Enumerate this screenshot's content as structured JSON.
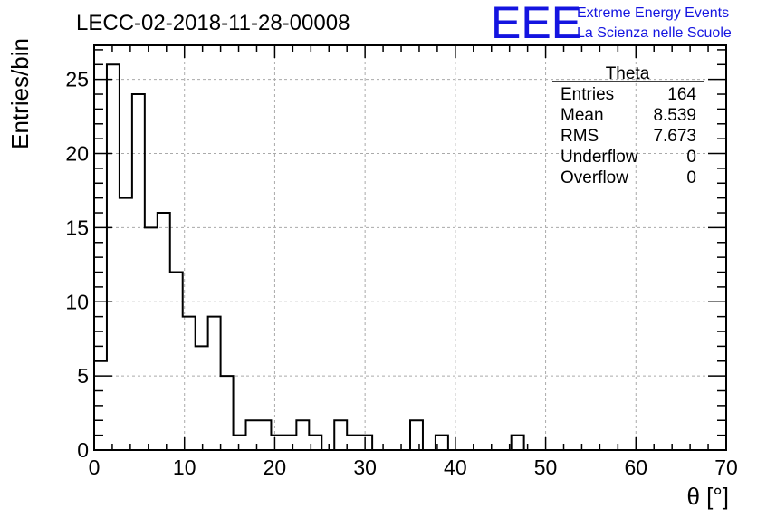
{
  "chart_data": {
    "type": "bar",
    "title": "LECC-02-2018-11-28-00008",
    "xlabel": "θ [°]",
    "ylabel": "Entries/bin",
    "xlim": [
      0,
      70
    ],
    "ylim": [
      0,
      27.3
    ],
    "grid": true,
    "x_ticks": [
      0,
      10,
      20,
      30,
      40,
      50,
      60,
      70
    ],
    "y_ticks": [
      0,
      5,
      10,
      15,
      20,
      25
    ],
    "bin_width": 1.4,
    "bin_edges_start": 0,
    "values": [
      6,
      26,
      17,
      24,
      15,
      16,
      12,
      9,
      7,
      9,
      5,
      1,
      2,
      2,
      1,
      1,
      2,
      1,
      0,
      2,
      1,
      1,
      0,
      0,
      0,
      2,
      0,
      1,
      0,
      0,
      0,
      0,
      0,
      1,
      0,
      0,
      0,
      0,
      0,
      0,
      0,
      0,
      0,
      0,
      0,
      0,
      0,
      0,
      0,
      0
    ],
    "stats_box": {
      "name": "Theta",
      "rows": [
        {
          "label": "Entries",
          "value": "164"
        },
        {
          "label": "Mean",
          "value": "8.539"
        },
        {
          "label": "RMS",
          "value": "7.673"
        },
        {
          "label": "Underflow",
          "value": "0"
        },
        {
          "label": "Overflow",
          "value": "0"
        }
      ],
      "placement": "top-right"
    }
  },
  "logo": {
    "mark": "EEE",
    "line1": "Extreme Energy Events",
    "line2": "La Scienza nelle Scuole"
  },
  "colors": {
    "histogram_line": "#000000",
    "grid": "#aaaaaa",
    "logo": "#1414e0"
  }
}
